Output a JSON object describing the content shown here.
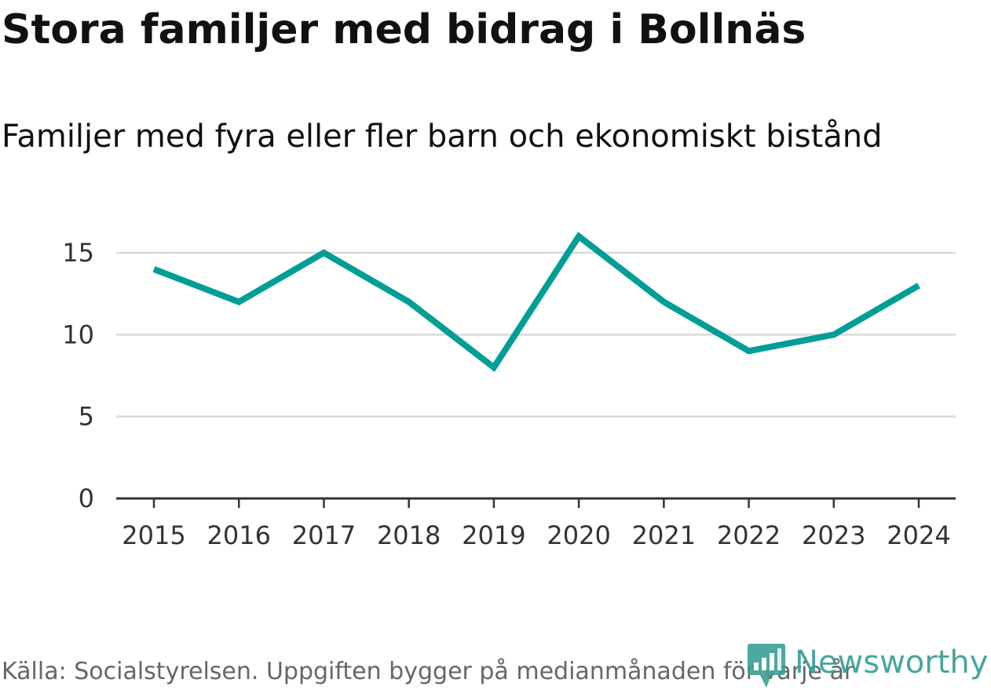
{
  "header": {
    "title": "Stora familjer med bidrag i Bollnäs",
    "subtitle": "Familjer med fyra eller fler barn och ekonomiskt bistånd"
  },
  "footer": {
    "source": "Källa: Socialstyrelsen. Uppgiften bygger på medianmånaden för varje år",
    "brand": "Newsworthy"
  },
  "colors": {
    "line": "#009e96",
    "grid": "#d9d9d9",
    "axis": "#333333",
    "brand": "#3a9e96"
  },
  "chart_data": {
    "type": "line",
    "title": "Stora familjer med bidrag i Bollnäs",
    "subtitle": "Familjer med fyra eller fler barn och ekonomiskt bistånd",
    "xlabel": "",
    "ylabel": "",
    "categories": [
      "2015",
      "2016",
      "2017",
      "2018",
      "2019",
      "2020",
      "2021",
      "2022",
      "2023",
      "2024"
    ],
    "series": [
      {
        "name": "Familjer med fyra eller fler barn och ekonomiskt bistånd",
        "values": [
          14,
          12,
          15,
          12,
          8,
          16,
          12,
          9,
          10,
          13
        ]
      }
    ],
    "yticks": [
      0,
      5,
      10,
      15
    ],
    "ylim": [
      0,
      17
    ],
    "grid": true,
    "legend": "none"
  }
}
